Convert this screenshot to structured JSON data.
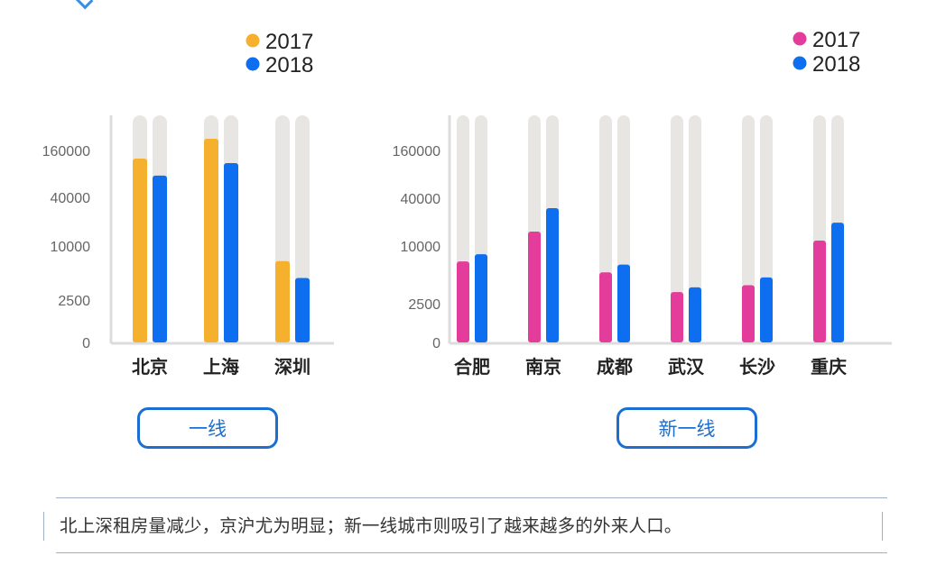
{
  "chart_data": [
    {
      "type": "bar",
      "scale": "nonlinear (tick labels 0, 2500, 10000, 40000, 160000 equally spaced)",
      "yticks": [
        0,
        2500,
        10000,
        40000,
        160000
      ],
      "categories": [
        "北京",
        "上海",
        "深圳"
      ],
      "series": [
        {
          "name": "2017",
          "color": "#f5b02e",
          "values": [
            126000,
            226000,
            6800
          ]
        },
        {
          "name": "2018",
          "color": "#0d6ef0",
          "values": [
            76000,
            110000,
            4400
          ]
        }
      ],
      "track_color": "#e8e6e3",
      "legend": "top-right",
      "grid": false
    },
    {
      "type": "bar",
      "scale": "nonlinear (tick labels 0, 2500, 10000, 40000, 160000 equally spaced)",
      "yticks": [
        0,
        2500,
        10000,
        40000,
        160000
      ],
      "categories": [
        "合肥",
        "南京",
        "成都",
        "武汉",
        "长沙",
        "重庆"
      ],
      "series": [
        {
          "name": "2017",
          "color": "#e43c9a",
          "values": [
            6900,
            15200,
            5300,
            3300,
            3900,
            11700
          ]
        },
        {
          "name": "2018",
          "color": "#0d6ef0",
          "values": [
            8200,
            30000,
            6400,
            3700,
            4700,
            19700
          ]
        }
      ],
      "track_color": "#e8e6e3",
      "legend": "top-right",
      "grid": false
    }
  ],
  "buttons": {
    "tier1": "一线",
    "new_tier1": "新一线"
  },
  "caption": "北上深租房量减少，京沪尤为明显；新一线城市则吸引了越来越多的外来人口。",
  "colors": {
    "accent": "#1a6fd0"
  }
}
